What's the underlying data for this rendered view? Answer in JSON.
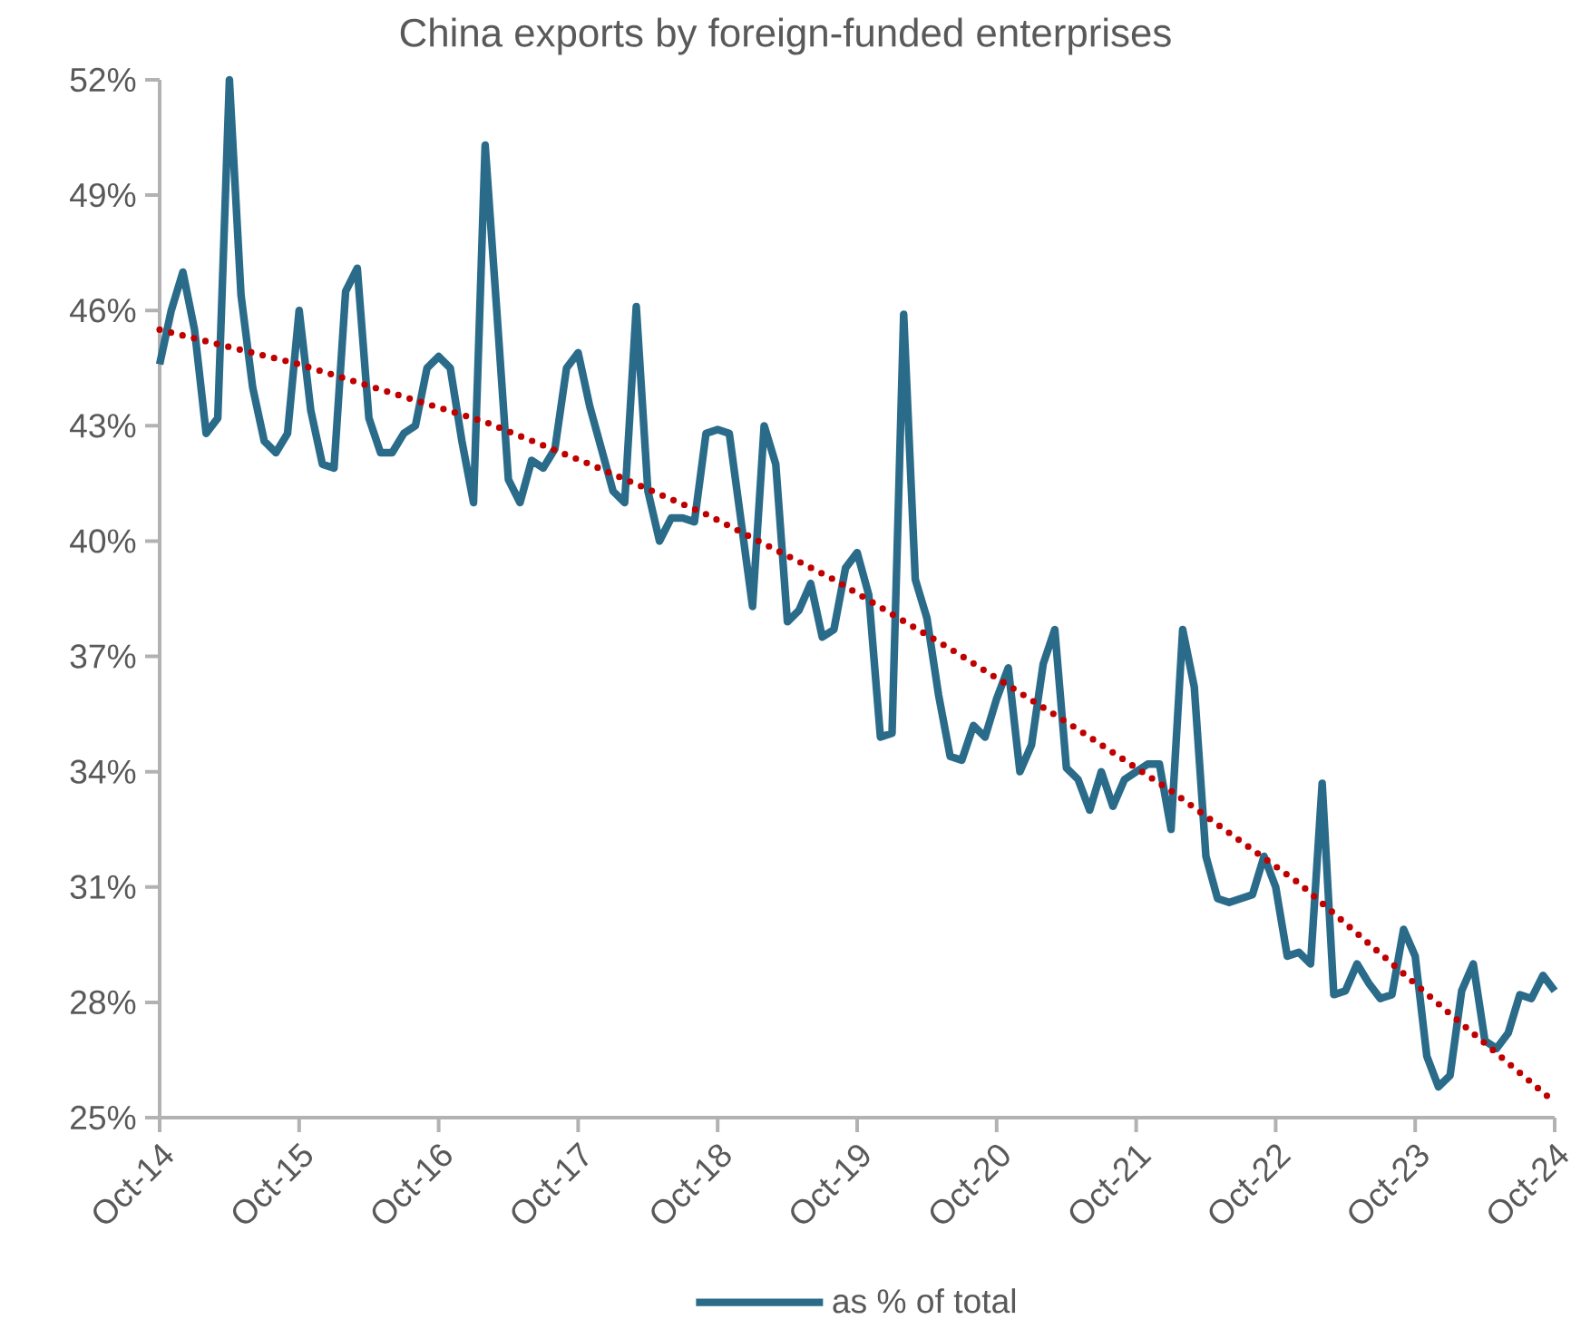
{
  "chart_data": {
    "type": "line",
    "title": "China exports by foreign-funded enterprises",
    "x": [
      "2014-10",
      "2014-11",
      "2014-12",
      "2015-01",
      "2015-02",
      "2015-03",
      "2015-04",
      "2015-05",
      "2015-06",
      "2015-07",
      "2015-08",
      "2015-09",
      "2015-10",
      "2015-11",
      "2015-12",
      "2016-01",
      "2016-02",
      "2016-03",
      "2016-04",
      "2016-05",
      "2016-06",
      "2016-07",
      "2016-08",
      "2016-09",
      "2016-10",
      "2016-11",
      "2016-12",
      "2017-01",
      "2017-02",
      "2017-03",
      "2017-04",
      "2017-05",
      "2017-06",
      "2017-07",
      "2017-08",
      "2017-09",
      "2017-10",
      "2017-11",
      "2018-01",
      "2018-02",
      "2018-03",
      "2018-04",
      "2018-05",
      "2018-06",
      "2018-07",
      "2018-08",
      "2018-09",
      "2018-10",
      "2018-11",
      "2019-01",
      "2019-02",
      "2019-03",
      "2019-04",
      "2019-05",
      "2019-06",
      "2019-07",
      "2019-08",
      "2019-09",
      "2019-10",
      "2019-11",
      "2019-12",
      "2020-01",
      "2020-02",
      "2020-03",
      "2020-04",
      "2020-05",
      "2020-06",
      "2020-07",
      "2020-08",
      "2020-09",
      "2020-10",
      "2020-11",
      "2020-12",
      "2021-01",
      "2021-02",
      "2021-03",
      "2021-04",
      "2021-05",
      "2021-06",
      "2021-07",
      "2021-08",
      "2021-09",
      "2021-10",
      "2021-11",
      "2021-12",
      "2022-01",
      "2022-02",
      "2022-03",
      "2022-04",
      "2022-05",
      "2022-06",
      "2022-07",
      "2022-08",
      "2022-09",
      "2022-10",
      "2022-11",
      "2022-12",
      "2023-01",
      "2023-02",
      "2023-03",
      "2023-04",
      "2023-05",
      "2023-06",
      "2023-07",
      "2023-08",
      "2023-09",
      "2023-10",
      "2023-11",
      "2023-12",
      "2024-01",
      "2024-02",
      "2024-03",
      "2024-04",
      "2024-05",
      "2024-06",
      "2024-07",
      "2024-08",
      "2024-09",
      "2024-10"
    ],
    "series": [
      {
        "name": "as % of total",
        "color": "#2a6b8a",
        "line_style": "solid",
        "values": [
          44.6,
          46.0,
          47.0,
          45.5,
          42.8,
          43.2,
          52.0,
          46.4,
          44.0,
          42.6,
          42.3,
          42.8,
          46.0,
          43.4,
          42.0,
          41.9,
          46.5,
          47.1,
          43.2,
          42.3,
          42.3,
          42.8,
          43.0,
          44.5,
          44.8,
          44.5,
          42.6,
          41.0,
          50.3,
          46.0,
          41.6,
          41.0,
          42.1,
          41.9,
          42.4,
          44.5,
          44.9,
          43.5,
          41.3,
          41.0,
          46.1,
          41.3,
          40.0,
          40.6,
          40.6,
          40.5,
          42.8,
          42.9,
          42.8,
          38.3,
          43.0,
          42.0,
          37.9,
          38.2,
          38.9,
          37.5,
          37.7,
          39.3,
          39.7,
          38.6,
          34.9,
          35.0,
          45.9,
          39.0,
          38.0,
          36.0,
          34.4,
          34.3,
          35.2,
          34.9,
          35.9,
          36.7,
          34.0,
          34.7,
          36.8,
          37.7,
          34.1,
          33.8,
          33.0,
          34.0,
          33.1,
          33.8,
          34.0,
          34.2,
          34.2,
          32.5,
          37.7,
          36.2,
          31.8,
          30.7,
          30.6,
          30.7,
          30.8,
          31.8,
          31.0,
          29.2,
          29.3,
          29.0,
          33.7,
          28.2,
          28.3,
          29.0,
          28.5,
          28.1,
          28.2,
          29.9,
          29.2,
          26.6,
          25.8,
          26.1,
          28.3,
          29.0,
          27.0,
          26.8,
          27.2,
          28.2,
          28.1,
          28.7,
          28.3
        ]
      },
      {
        "type": "line",
        "color": "#c00000",
        "line_style": "dotted",
        "x": [
          "2014-10",
          "2015-10",
          "2017-02",
          "2017-11",
          "2018-09",
          "2019-08",
          "2020-06",
          "2021-05",
          "2022-01",
          "2022-12",
          "2024-01",
          "2024-10"
        ],
        "values": [
          45.5,
          44.6,
          43.1,
          42.0,
          40.7,
          39.0,
          37.2,
          35.1,
          33.5,
          31.1,
          27.7,
          25.4
        ]
      }
    ],
    "xlim": [
      "2014-10",
      "2024-10"
    ],
    "xticks": [
      {
        "value": "2014-10",
        "label": "Oct-14"
      },
      {
        "value": "2015-10",
        "label": "Oct-15"
      },
      {
        "value": "2016-10",
        "label": "Oct-16"
      },
      {
        "value": "2017-10",
        "label": "Oct-17"
      },
      {
        "value": "2018-10",
        "label": "Oct-18"
      },
      {
        "value": "2019-10",
        "label": "Oct-19"
      },
      {
        "value": "2020-10",
        "label": "Oct-20"
      },
      {
        "value": "2021-10",
        "label": "Oct-21"
      },
      {
        "value": "2022-10",
        "label": "Oct-22"
      },
      {
        "value": "2023-10",
        "label": "Oct-23"
      },
      {
        "value": "2024-10",
        "label": "Oct-24"
      }
    ],
    "ylim": [
      25,
      52
    ],
    "yticks": [
      {
        "value": 25,
        "label": "25%"
      },
      {
        "value": 28,
        "label": "28%"
      },
      {
        "value": 31,
        "label": "31%"
      },
      {
        "value": 34,
        "label": "34%"
      },
      {
        "value": 37,
        "label": "37%"
      },
      {
        "value": 40,
        "label": "40%"
      },
      {
        "value": 43,
        "label": "43%"
      },
      {
        "value": 46,
        "label": "46%"
      },
      {
        "value": 49,
        "label": "49%"
      },
      {
        "value": 52,
        "label": "52%"
      }
    ],
    "marker": "none",
    "legend": "bottom"
  }
}
